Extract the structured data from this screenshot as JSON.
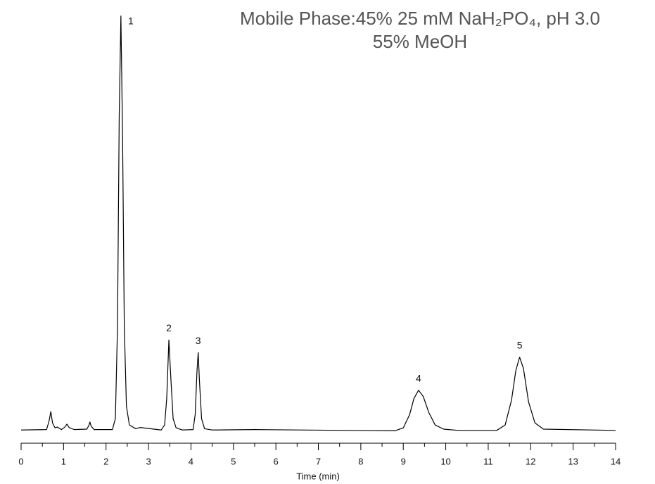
{
  "chart_data": {
    "type": "line",
    "title": [
      "Mobile Phase:45% 25 mM NaH₂PO₄, pH 3.0",
      "55% MeOH"
    ],
    "x_label": "Time (min)",
    "xlim": [
      0,
      14
    ],
    "xticks": [
      0,
      1,
      2,
      3,
      4,
      5,
      6,
      7,
      8,
      9,
      10,
      11,
      12,
      13,
      14
    ],
    "ylim": [
      0,
      100
    ],
    "color": "#000000",
    "x": [
      0,
      0.6,
      0.66,
      0.7,
      0.74,
      0.8,
      0.85,
      0.95,
      1.03,
      1.08,
      1.13,
      1.25,
      1.55,
      1.6,
      1.62,
      1.65,
      1.72,
      2.15,
      2.22,
      2.27,
      2.31,
      2.35,
      2.39,
      2.43,
      2.48,
      2.55,
      2.7,
      2.8,
      3.3,
      3.38,
      3.43,
      3.48,
      3.53,
      3.58,
      3.65,
      3.8,
      4.05,
      4.1,
      4.14,
      4.17,
      4.2,
      4.25,
      4.32,
      4.5,
      5.5,
      8.8,
      9.0,
      9.15,
      9.25,
      9.36,
      9.47,
      9.6,
      9.75,
      9.95,
      10.3,
      11.2,
      11.4,
      11.55,
      11.65,
      11.74,
      11.83,
      11.95,
      12.1,
      12.3,
      14
    ],
    "values": [
      0.3,
      0.4,
      2.5,
      4.7,
      2,
      0.8,
      1,
      0.4,
      1,
      1.7,
      0.9,
      0.4,
      0.5,
      1.5,
      2.2,
      1.2,
      0.4,
      0.4,
      3,
      25,
      75,
      99.2,
      70,
      25,
      6,
      1.5,
      0.6,
      0.9,
      0.3,
      1.5,
      8,
      21.8,
      12,
      3,
      0.8,
      0.3,
      0.4,
      4,
      14,
      18.8,
      12,
      3,
      0.6,
      0.3,
      0.4,
      0.1,
      0.8,
      4,
      7.8,
      9.8,
      8.3,
      4.5,
      1.5,
      0.5,
      0.2,
      0.2,
      1.5,
      7.5,
      14.5,
      17.7,
      15,
      7,
      2,
      0.5,
      0.2
    ],
    "annotations": [
      {
        "text": "1",
        "x": 2.35,
        "y": 99.2
      },
      {
        "text": "2",
        "x": 3.48,
        "y": 21.8
      },
      {
        "text": "3",
        "x": 4.17,
        "y": 18.8
      },
      {
        "text": "4",
        "x": 9.36,
        "y": 9.8
      },
      {
        "text": "5",
        "x": 11.74,
        "y": 17.7
      }
    ]
  }
}
